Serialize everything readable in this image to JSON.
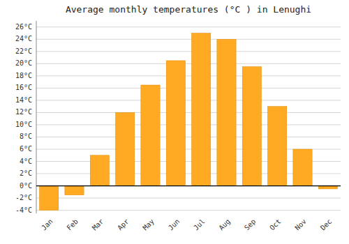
{
  "chart_data": {
    "type": "bar",
    "title": "Average monthly temperatures (°C ) in Lenughi",
    "categories": [
      "Jan",
      "Feb",
      "Mar",
      "Apr",
      "May",
      "Jun",
      "Jul",
      "Aug",
      "Sep",
      "Oct",
      "Nov",
      "Dec"
    ],
    "values": [
      -4.0,
      -1.5,
      5.0,
      12.0,
      16.5,
      20.5,
      25.0,
      24.0,
      19.5,
      13.0,
      6.0,
      -0.5
    ],
    "color": "#FFAA22",
    "ylim": [
      -4.5,
      27
    ],
    "yticks": [
      {
        "value": -4,
        "label": "-4°C"
      },
      {
        "value": -2,
        "label": "-2°C"
      },
      {
        "value": 0,
        "label": "0°C"
      },
      {
        "value": 2,
        "label": "2°C"
      },
      {
        "value": 4,
        "label": "4°C"
      },
      {
        "value": 6,
        "label": "6°C"
      },
      {
        "value": 8,
        "label": "8°C"
      },
      {
        "value": 10,
        "label": "10°C"
      },
      {
        "value": 12,
        "label": "12°C"
      },
      {
        "value": 14,
        "label": "14°C"
      },
      {
        "value": 16,
        "label": "16°C"
      },
      {
        "value": 18,
        "label": "18°C"
      },
      {
        "value": 20,
        "label": "20°C"
      },
      {
        "value": 22,
        "label": "22°C"
      },
      {
        "value": 24,
        "label": "24°C"
      },
      {
        "value": 26,
        "label": "26°C"
      }
    ],
    "grid": true
  }
}
